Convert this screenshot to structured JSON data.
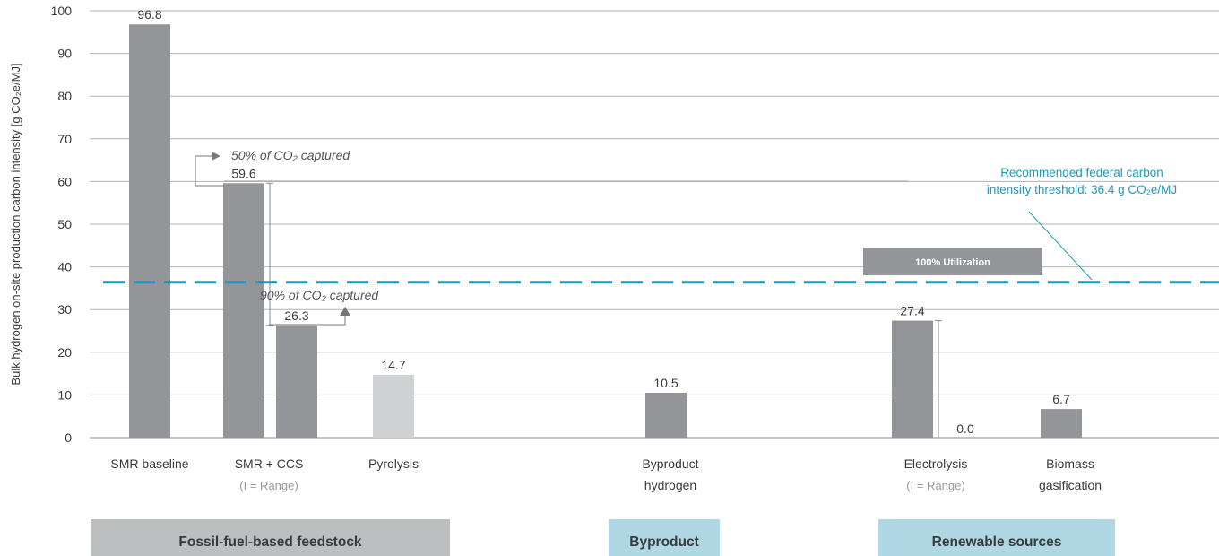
{
  "chart_data": {
    "type": "bar",
    "ylabel": "Bulk hydrogen on-site production carbon intensity [g CO₂e/MJ]",
    "ylim": [
      0,
      100
    ],
    "yticks": [
      0,
      10,
      20,
      30,
      40,
      50,
      60,
      70,
      80,
      90,
      100
    ],
    "grid": true,
    "bars": [
      {
        "label": "96.8",
        "value": 96.8,
        "color": "#939598"
      },
      {
        "label": "59.6",
        "value": 59.6,
        "color": "#939598"
      },
      {
        "label": "26.3",
        "value": 26.3,
        "color": "#939598"
      },
      {
        "label": "14.7",
        "value": 14.7,
        "color": "#d1d2d4"
      },
      {
        "label": "10.5",
        "value": 10.5,
        "color": "#939598"
      },
      {
        "label": "27.4",
        "value": 27.4,
        "color": "#939598"
      },
      {
        "label": "0.0",
        "value": 0.0,
        "color": "#939598"
      },
      {
        "label": "6.7",
        "value": 6.7,
        "color": "#939598"
      }
    ],
    "categories": [
      {
        "label": "SMR baseline",
        "sub": ""
      },
      {
        "label": "SMR + CCS",
        "sub": "(I = Range)"
      },
      {
        "label": "Pyrolysis",
        "sub": ""
      },
      {
        "label": "Byproduct",
        "sub": "hydrogen"
      },
      {
        "label": "Electrolysis",
        "sub": "(I = Range)"
      },
      {
        "label": "Biomass",
        "sub": "gasification"
      }
    ],
    "ranges": [
      {
        "low": 26.3,
        "high": 59.6
      },
      {
        "low": 0.0,
        "high": 27.4
      }
    ],
    "annotations": {
      "capture_50": "50% of CO₂ captured",
      "capture_90": "90% of CO₂ captured",
      "threshold_value": 36.4,
      "threshold_line1": "Recommended federal carbon",
      "threshold_line2": "intensity threshold: 36.4 g CO₂e/MJ",
      "utilization": "100% Utilization"
    },
    "groups": [
      {
        "label": "Fossil-fuel-based feedstock",
        "color": "#bcbec0"
      },
      {
        "label": "Byproduct",
        "color": "#afd8e4"
      },
      {
        "label": "Renewable sources",
        "color": "#afd8e4"
      }
    ],
    "colors": {
      "threshold": "#1b9aba",
      "bar_dark": "#939598",
      "bar_light": "#d1d2d4"
    }
  }
}
